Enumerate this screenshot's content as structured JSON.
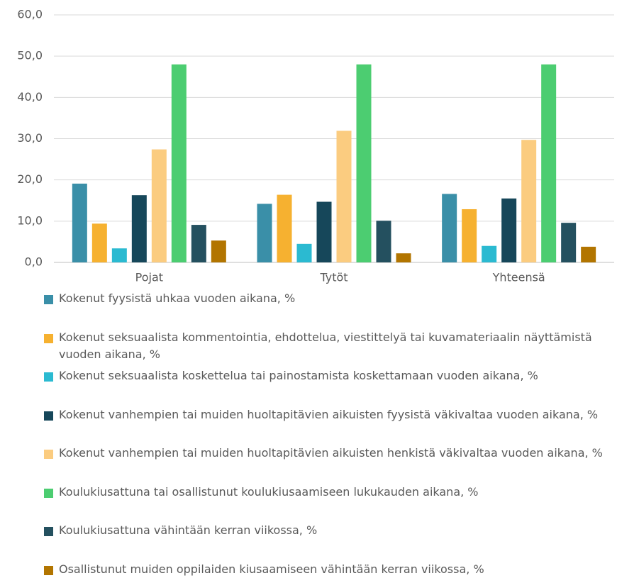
{
  "chart_data": {
    "type": "bar",
    "categories": [
      "Pojat",
      "Tytöt",
      "Yhteensä"
    ],
    "series": [
      {
        "name": "Kokenut fyysistä uhkaa vuoden aikana, %",
        "color": "#3a8fa8",
        "values": [
          19.1,
          14.2,
          16.6
        ]
      },
      {
        "name": "Kokenut seksuaalista kommentointia, ehdottelua, viestittelyä tai kuvamateriaalin näyttämistä vuoden aikana, %",
        "color": "#f6b130",
        "values": [
          9.4,
          16.4,
          12.9
        ]
      },
      {
        "name": "Kokenut seksuaalista koskettelua tai painostamista koskettamaan vuoden aikana, %",
        "color": "#2bbad1",
        "values": [
          3.4,
          4.5,
          4.0
        ]
      },
      {
        "name": "Kokenut vanhempien tai muiden huoltapitävien aikuisten fyysistä väkivaltaa vuoden aikana, %",
        "color": "#16475a",
        "values": [
          16.3,
          14.7,
          15.5
        ]
      },
      {
        "name": "Kokenut vanhempien tai muiden huoltapitävien aikuisten henkistä väkivaltaa vuoden aikana, %",
        "color": "#fbcc80",
        "values": [
          27.4,
          31.9,
          29.7
        ]
      },
      {
        "name": "Koulukiusattuna tai osallistunut koulukiusaamiseen lukukauden aikana, %",
        "color": "#4ccd71",
        "values": [
          48.0,
          48.0,
          48.0
        ]
      },
      {
        "name": "Koulukiusattuna vähintään kerran viikossa, %",
        "color": "#24505f",
        "values": [
          9.1,
          10.1,
          9.6
        ]
      },
      {
        "name": "Osallistunut muiden oppilaiden kiusaamiseen vähintään kerran viikossa, %",
        "color": "#b27500",
        "values": [
          5.3,
          2.2,
          3.8
        ]
      }
    ],
    "ylim": [
      0,
      60
    ],
    "yticks": [
      {
        "value": 0,
        "label": "0,0"
      },
      {
        "value": 10,
        "label": "10,0"
      },
      {
        "value": 20,
        "label": "20,0"
      },
      {
        "value": 30,
        "label": "30,0"
      },
      {
        "value": 40,
        "label": "40,0"
      },
      {
        "value": 50,
        "label": "50,0"
      },
      {
        "value": 60,
        "label": "60,0"
      }
    ],
    "grid": true
  }
}
